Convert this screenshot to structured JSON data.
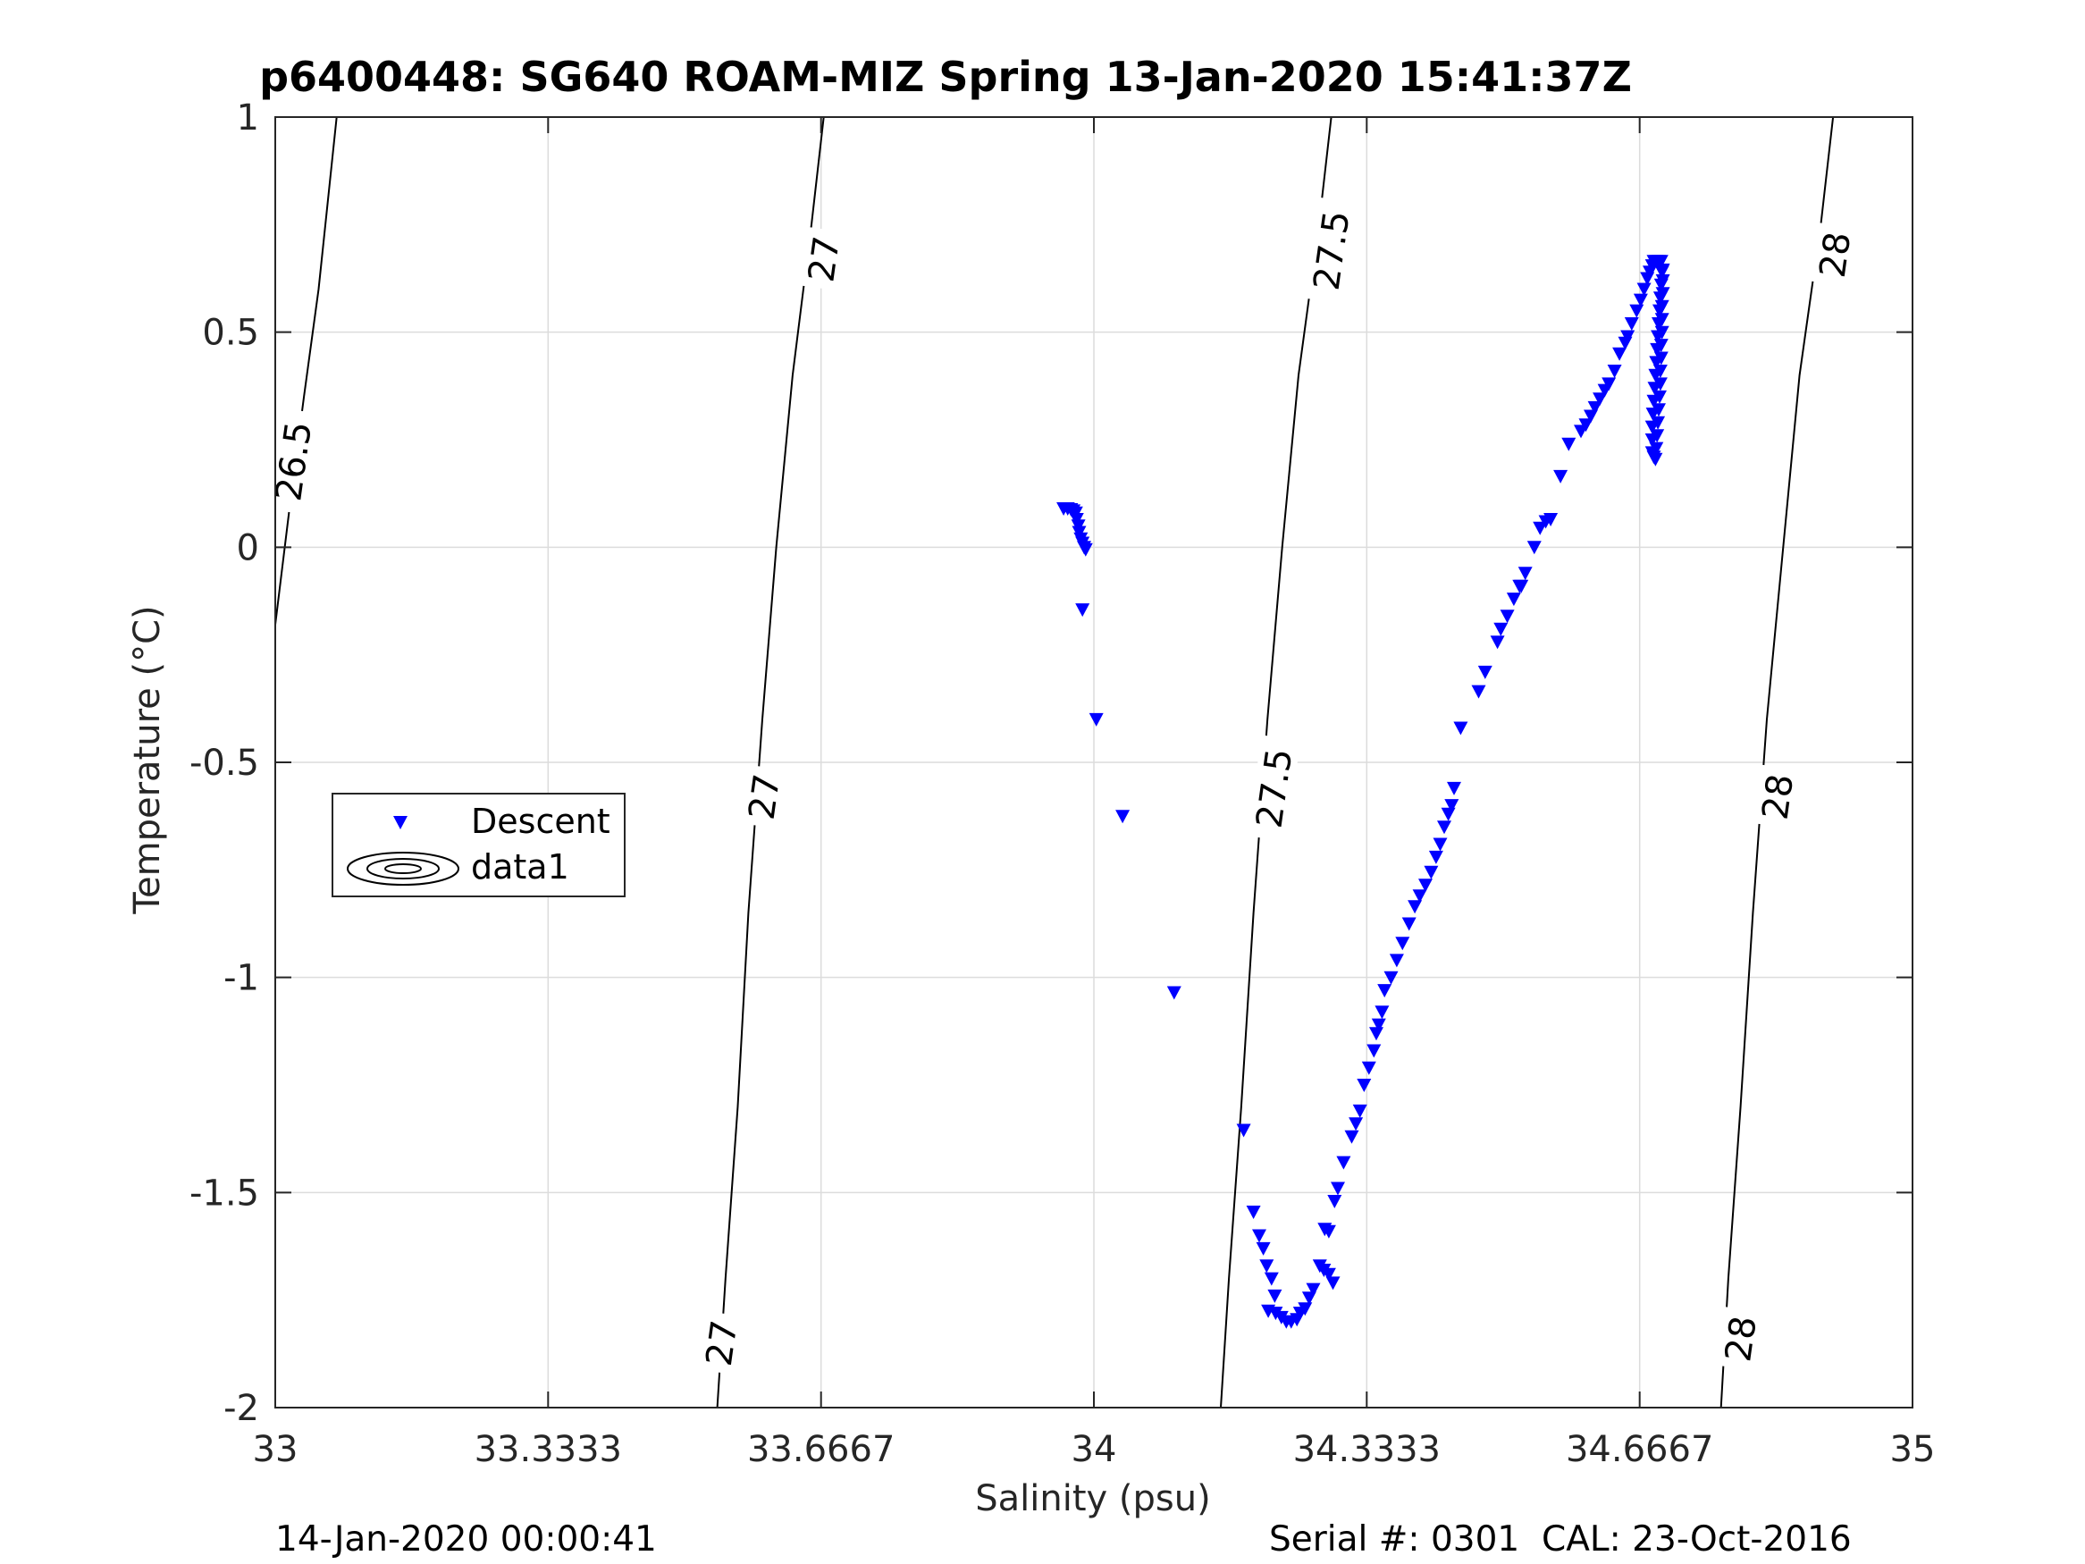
{
  "chart_data": {
    "type": "scatter",
    "title": "p6400448: SG640 ROAM-MIZ Spring 13-Jan-2020 15:41:37Z",
    "xlabel": "Salinity (psu)",
    "ylabel": "Temperature (°C)",
    "xlim": [
      33,
      35
    ],
    "ylim": [
      -2,
      1
    ],
    "xticks": [
      33,
      33.3333,
      33.6667,
      34,
      34.3333,
      34.6667,
      35
    ],
    "xtick_labels": [
      "33",
      "33.3333",
      "33.6667",
      "34",
      "34.3333",
      "34.6667",
      "35"
    ],
    "yticks": [
      -2,
      -1.5,
      -1,
      -0.5,
      0,
      0.5,
      1
    ],
    "ytick_labels": [
      "-2",
      "-1.5",
      "-1",
      "-0.5",
      "0",
      "0.5",
      "1"
    ],
    "grid": true,
    "legend_position": "left-middle",
    "legend": [
      "Descent",
      "data1"
    ],
    "footer_left": "14-Jan-2020 00:00:41",
    "footer_right": "Serial #: 0301  CAL: 23-Oct-2016",
    "colors": {
      "descent": "#0000ff",
      "contour": "#000000",
      "grid": "#dcdcdc"
    },
    "contours": [
      {
        "level": "26.5",
        "points": [
          [
            33.0,
            -0.18
          ],
          [
            33.018,
            0.1
          ],
          [
            33.035,
            0.35
          ],
          [
            33.053,
            0.6
          ],
          [
            33.075,
            1.0
          ]
        ],
        "labels": [
          {
            "text": "26.5",
            "s": 33.022,
            "t": 0.2
          }
        ]
      },
      {
        "level": "27",
        "points": [
          [
            33.54,
            -2.0
          ],
          [
            33.55,
            -1.7
          ],
          [
            33.565,
            -1.3
          ],
          [
            33.578,
            -0.85
          ],
          [
            33.595,
            -0.4
          ],
          [
            33.612,
            0.0
          ],
          [
            33.632,
            0.4
          ],
          [
            33.655,
            0.75
          ],
          [
            33.67,
            1.0
          ]
        ],
        "labels": [
          {
            "text": "27",
            "s": 33.545,
            "t": -1.85
          },
          {
            "text": "27",
            "s": 33.597,
            "t": -0.58
          },
          {
            "text": "27",
            "s": 33.67,
            "t": 0.67
          }
        ]
      },
      {
        "level": "27.5",
        "points": [
          [
            34.155,
            -2.0
          ],
          [
            34.165,
            -1.7
          ],
          [
            34.18,
            -1.3
          ],
          [
            34.195,
            -0.85
          ],
          [
            34.212,
            -0.4
          ],
          [
            34.23,
            0.0
          ],
          [
            34.25,
            0.4
          ],
          [
            34.275,
            0.75
          ],
          [
            34.29,
            1.0
          ]
        ],
        "labels": [
          {
            "text": "27.5",
            "s": 34.22,
            "t": -0.56
          },
          {
            "text": "27.5",
            "s": 34.29,
            "t": 0.69
          }
        ]
      },
      {
        "level": "28",
        "points": [
          [
            34.766,
            -2.0
          ],
          [
            34.775,
            -1.7
          ],
          [
            34.79,
            -1.3
          ],
          [
            34.805,
            -0.85
          ],
          [
            34.822,
            -0.4
          ],
          [
            34.842,
            0.0
          ],
          [
            34.862,
            0.4
          ],
          [
            34.888,
            0.75
          ],
          [
            34.903,
            1.0
          ]
        ],
        "labels": [
          {
            "text": "28",
            "s": 34.79,
            "t": -1.84
          },
          {
            "text": "28",
            "s": 34.835,
            "t": -0.58
          },
          {
            "text": "28",
            "s": 34.905,
            "t": 0.68
          }
        ]
      }
    ],
    "series": [
      {
        "name": "Descent",
        "marker": "triangle-down",
        "points": [
          [
            33.963,
            0.09
          ],
          [
            33.968,
            0.09
          ],
          [
            33.972,
            0.088
          ],
          [
            33.975,
            0.085
          ],
          [
            33.978,
            0.08
          ],
          [
            33.979,
            0.065
          ],
          [
            33.981,
            0.05
          ],
          [
            33.982,
            0.035
          ],
          [
            33.984,
            0.02
          ],
          [
            33.986,
            0.01
          ],
          [
            33.988,
            0.0
          ],
          [
            33.99,
            -0.005
          ],
          [
            33.986,
            -0.145
          ],
          [
            34.003,
            -0.4
          ],
          [
            34.035,
            -0.625
          ],
          [
            34.098,
            -1.035
          ],
          [
            34.183,
            -1.355
          ],
          [
            34.195,
            -1.545
          ],
          [
            34.202,
            -1.6
          ],
          [
            34.207,
            -1.63
          ],
          [
            34.211,
            -1.67
          ],
          [
            34.217,
            -1.7
          ],
          [
            34.221,
            -1.74
          ],
          [
            34.213,
            -1.775
          ],
          [
            34.222,
            -1.78
          ],
          [
            34.229,
            -1.79
          ],
          [
            34.235,
            -1.8
          ],
          [
            34.241,
            -1.8
          ],
          [
            34.248,
            -1.795
          ],
          [
            34.252,
            -1.78
          ],
          [
            34.258,
            -1.77
          ],
          [
            34.263,
            -1.745
          ],
          [
            34.268,
            -1.725
          ],
          [
            34.276,
            -1.67
          ],
          [
            34.281,
            -1.68
          ],
          [
            34.287,
            -1.69
          ],
          [
            34.292,
            -1.71
          ],
          [
            34.282,
            -1.585
          ],
          [
            34.287,
            -1.59
          ],
          [
            34.294,
            -1.52
          ],
          [
            34.298,
            -1.49
          ],
          [
            34.305,
            -1.43
          ],
          [
            34.315,
            -1.37
          ],
          [
            34.32,
            -1.34
          ],
          [
            34.325,
            -1.31
          ],
          [
            34.33,
            -1.25
          ],
          [
            34.336,
            -1.21
          ],
          [
            34.342,
            -1.17
          ],
          [
            34.345,
            -1.13
          ],
          [
            34.348,
            -1.11
          ],
          [
            34.352,
            -1.08
          ],
          [
            34.355,
            -1.03
          ],
          [
            34.363,
            -1.0
          ],
          [
            34.37,
            -0.96
          ],
          [
            34.377,
            -0.92
          ],
          [
            34.385,
            -0.875
          ],
          [
            34.392,
            -0.835
          ],
          [
            34.398,
            -0.81
          ],
          [
            34.405,
            -0.785
          ],
          [
            34.412,
            -0.755
          ],
          [
            34.418,
            -0.72
          ],
          [
            34.423,
            -0.69
          ],
          [
            34.428,
            -0.65
          ],
          [
            34.433,
            -0.62
          ],
          [
            34.437,
            -0.6
          ],
          [
            34.44,
            -0.56
          ],
          [
            34.448,
            -0.42
          ],
          [
            34.47,
            -0.335
          ],
          [
            34.478,
            -0.29
          ],
          [
            34.493,
            -0.22
          ],
          [
            34.497,
            -0.19
          ],
          [
            34.505,
            -0.16
          ],
          [
            34.513,
            -0.12
          ],
          [
            34.52,
            -0.09
          ],
          [
            34.527,
            -0.06
          ],
          [
            34.522,
            -0.09
          ],
          [
            34.538,
            0.0
          ],
          [
            34.545,
            0.045
          ],
          [
            34.552,
            0.06
          ],
          [
            34.558,
            0.065
          ],
          [
            34.57,
            0.165
          ],
          [
            34.58,
            0.24
          ],
          [
            34.595,
            0.27
          ],
          [
            34.601,
            0.285
          ],
          [
            34.607,
            0.305
          ],
          [
            34.612,
            0.325
          ],
          [
            34.618,
            0.345
          ],
          [
            34.624,
            0.365
          ],
          [
            34.629,
            0.38
          ],
          [
            34.636,
            0.41
          ],
          [
            34.642,
            0.45
          ],
          [
            34.649,
            0.475
          ],
          [
            34.652,
            0.49
          ],
          [
            34.657,
            0.52
          ],
          [
            34.663,
            0.55
          ],
          [
            34.668,
            0.575
          ],
          [
            34.672,
            0.6
          ],
          [
            34.676,
            0.625
          ],
          [
            34.679,
            0.64
          ],
          [
            34.682,
            0.655
          ],
          [
            34.684,
            0.665
          ],
          [
            34.687,
            0.665
          ],
          [
            34.69,
            0.665
          ],
          [
            34.693,
            0.665
          ],
          [
            34.694,
            0.64
          ],
          [
            34.693,
            0.61
          ],
          [
            34.692,
            0.58
          ],
          [
            34.691,
            0.55
          ],
          [
            34.69,
            0.52
          ],
          [
            34.689,
            0.49
          ],
          [
            34.688,
            0.46
          ],
          [
            34.687,
            0.43
          ],
          [
            34.686,
            0.4
          ],
          [
            34.685,
            0.37
          ],
          [
            34.684,
            0.34
          ],
          [
            34.683,
            0.31
          ],
          [
            34.682,
            0.28
          ],
          [
            34.682,
            0.25
          ],
          [
            34.682,
            0.22
          ],
          [
            34.684,
            0.21
          ],
          [
            34.686,
            0.205
          ],
          [
            34.687,
            0.23
          ],
          [
            34.688,
            0.26
          ],
          [
            34.689,
            0.29
          ],
          [
            34.69,
            0.32
          ],
          [
            34.691,
            0.35
          ],
          [
            34.692,
            0.38
          ],
          [
            34.692,
            0.41
          ],
          [
            34.693,
            0.44
          ],
          [
            34.693,
            0.47
          ],
          [
            34.694,
            0.5
          ],
          [
            34.694,
            0.53
          ],
          [
            34.694,
            0.56
          ],
          [
            34.695,
            0.59
          ],
          [
            34.695,
            0.62
          ],
          [
            34.695,
            0.645
          ]
        ]
      }
    ]
  }
}
